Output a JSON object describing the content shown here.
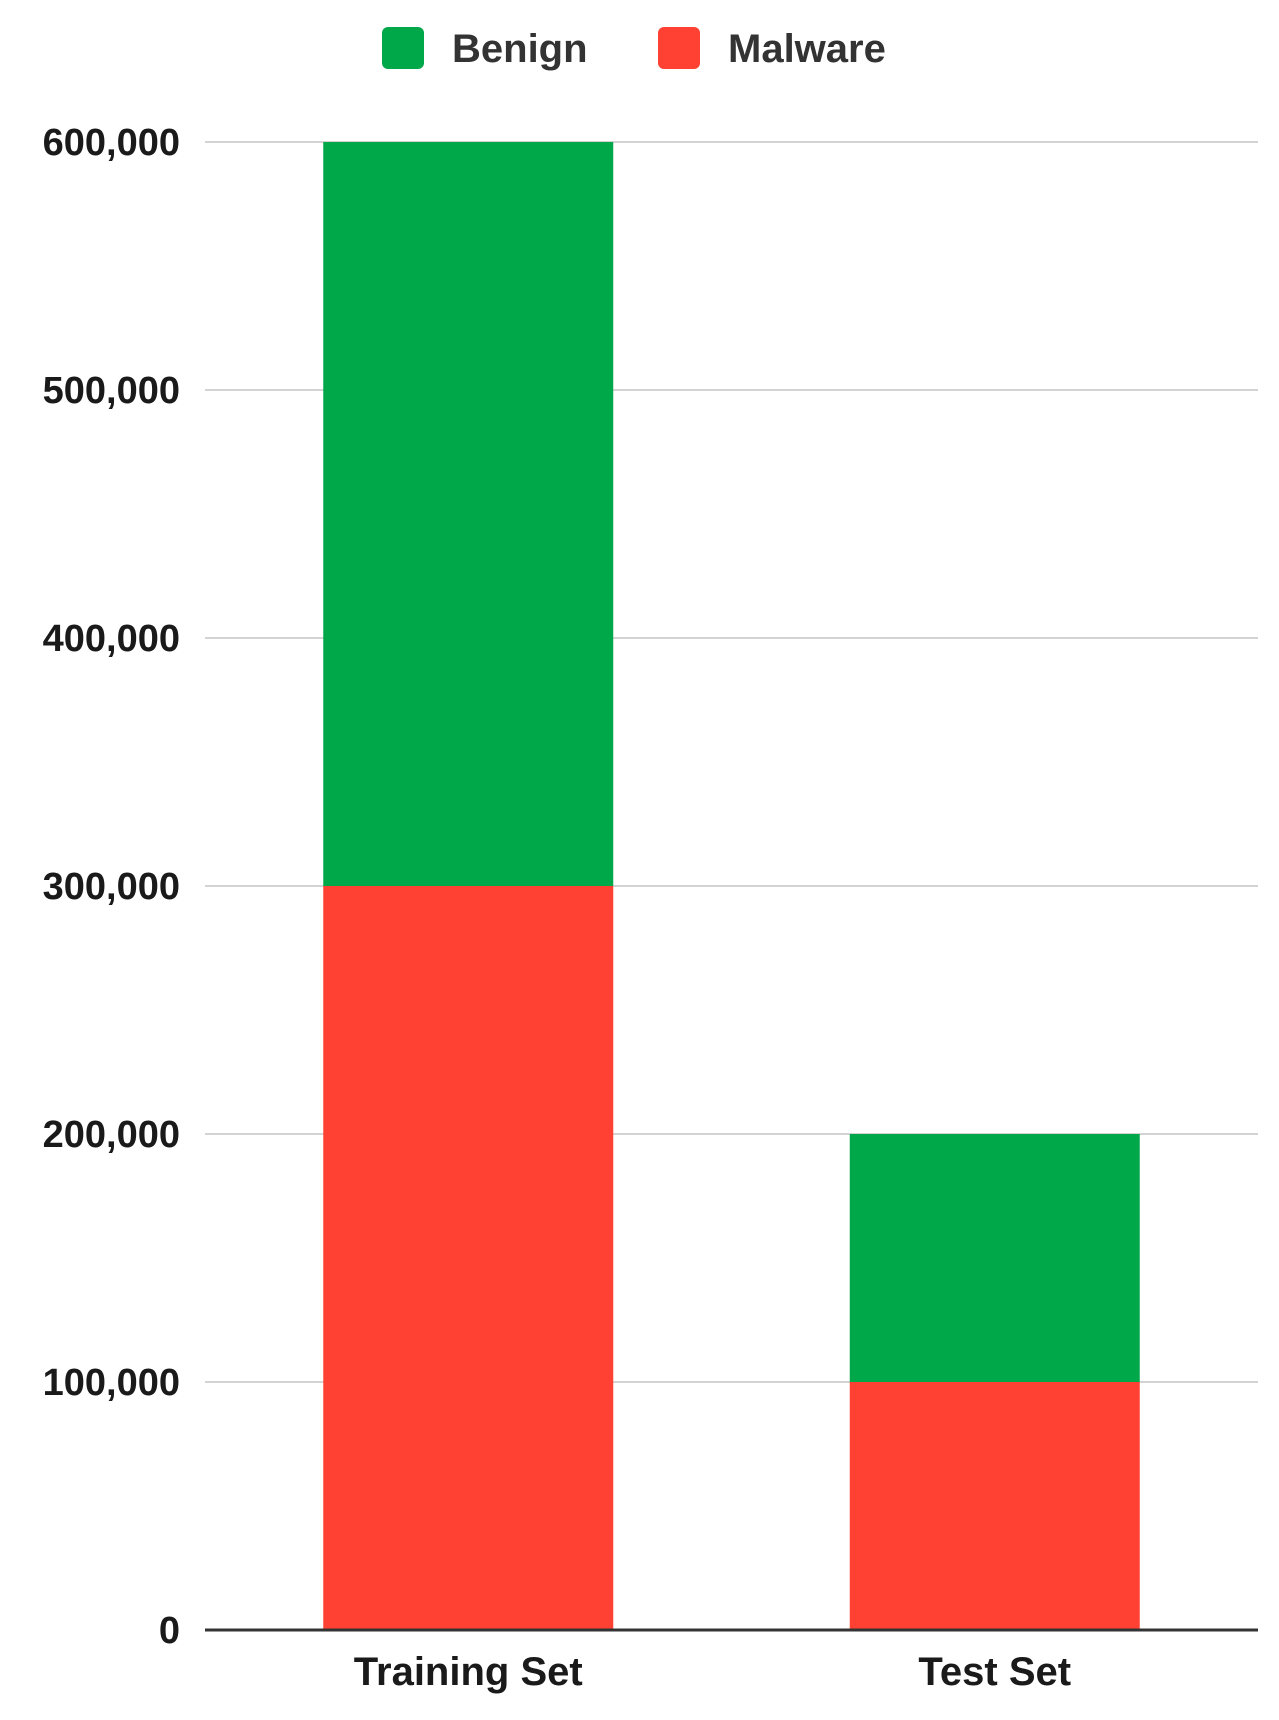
{
  "chart_data": {
    "type": "bar",
    "stacked": true,
    "categories": [
      "Training Set",
      "Test Set"
    ],
    "series": [
      {
        "name": "Malware",
        "color": "#ff4133",
        "values": [
          300000,
          100000
        ]
      },
      {
        "name": "Benign",
        "color": "#00a84a",
        "values": [
          300000,
          100000
        ]
      }
    ],
    "legend_order": [
      "Benign",
      "Malware"
    ],
    "legend_position": "top-center",
    "ylim": [
      0,
      600000
    ],
    "yticks": [
      0,
      100000,
      200000,
      300000,
      400000,
      500000,
      600000
    ],
    "ytick_labels": [
      "0",
      "100,000",
      "200,000",
      "300,000",
      "400,000",
      "500,000",
      "600,000"
    ],
    "grid": true,
    "title": "",
    "xlabel": "",
    "ylabel": ""
  }
}
